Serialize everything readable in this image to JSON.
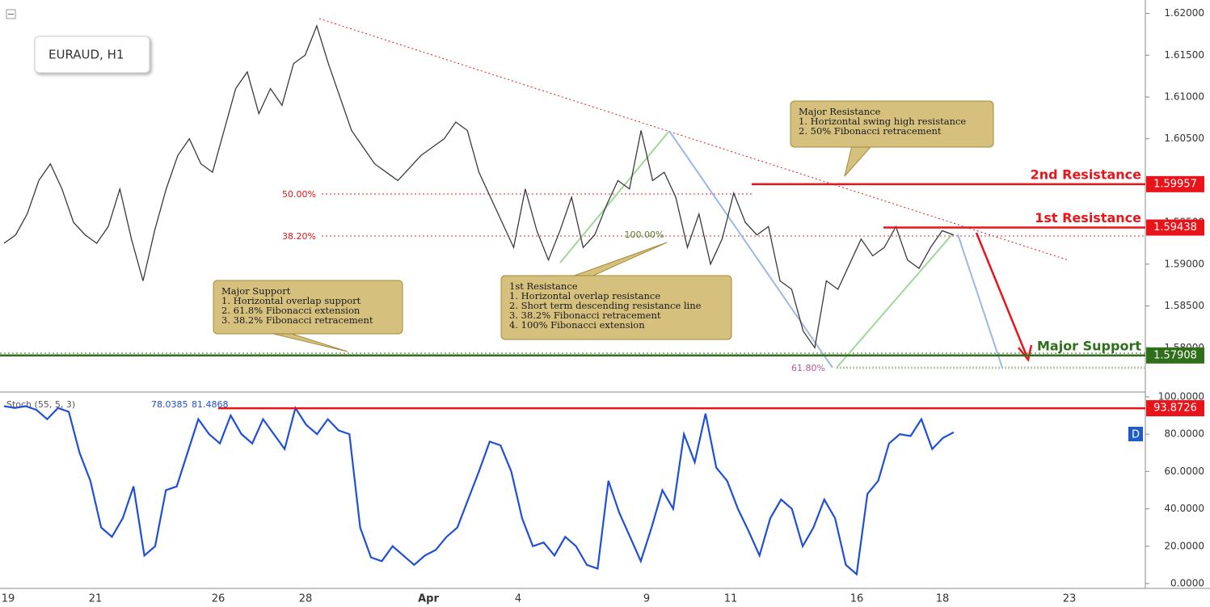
{
  "header": {
    "symbol": "EURAUD, H1"
  },
  "x_labels": [
    "19",
    "21",
    "26",
    "28",
    "Apr",
    "4",
    "9",
    "11",
    "16",
    "18",
    "23"
  ],
  "chart_data": [
    {
      "type": "line",
      "color": "#3a3a3a",
      "series": [
        {
          "name": "EURAUD",
          "color": "#3a3a3a",
          "values": [
            1.5925,
            1.5935,
            1.596,
            1.6,
            1.602,
            1.599,
            1.595,
            1.5935,
            1.5925,
            1.5945,
            1.599,
            1.593,
            1.588,
            1.594,
            1.599,
            1.603,
            1.605,
            1.602,
            1.601,
            1.606,
            1.611,
            1.613,
            1.608,
            1.611,
            1.609,
            1.614,
            1.615,
            1.6185,
            1.614,
            1.61,
            1.606,
            1.604,
            1.602,
            1.601,
            1.6,
            1.6015,
            1.603,
            1.604,
            1.605,
            1.607,
            1.606,
            1.601,
            1.598,
            1.595,
            1.592,
            1.599,
            1.594,
            1.5905,
            1.594,
            1.598,
            1.592,
            1.5935,
            1.597,
            1.6,
            1.599,
            1.606,
            1.6,
            1.601,
            1.598,
            1.592,
            1.596,
            1.59,
            1.593,
            1.5985,
            1.595,
            1.5935,
            1.5945,
            1.588,
            1.587,
            1.582,
            1.58,
            1.588,
            1.587,
            1.59,
            1.593,
            1.591,
            1.592,
            1.5945,
            1.5905,
            1.5895,
            1.592,
            1.594,
            1.5935
          ]
        }
      ],
      "ylim": [
        1.5749,
        1.6216
      ],
      "yticks": [
        {
          "value": 1.62,
          "label": "1.62000"
        },
        {
          "value": 1.615,
          "label": "1.61500"
        },
        {
          "value": 1.61,
          "label": "1.61000"
        },
        {
          "value": 1.605,
          "label": "1.60500"
        },
        {
          "value": 1.6,
          "label": "1.60000"
        },
        {
          "value": 1.595,
          "label": "1.59500"
        },
        {
          "value": 1.59,
          "label": "1.59000"
        },
        {
          "value": 1.585,
          "label": "1.58500"
        },
        {
          "value": 1.58,
          "label": "1.58000"
        }
      ],
      "levels": [
        {
          "label": "2nd Resistance",
          "value": 1.59957,
          "color": "#e8141a"
        },
        {
          "label": "1st Resistance",
          "value": 1.59438,
          "color": "#e8141a"
        },
        {
          "label": "Major Support",
          "value": 1.57908,
          "color": "#2f6e1a"
        }
      ],
      "fib_labels": [
        "50.00%",
        "38.20%",
        "100.00%",
        "61.80%"
      ],
      "annotations": [
        [
          "Major Resistance",
          "1. Horizontal swing high resistance",
          "2. 50% Fibonacci retracement"
        ],
        [
          "Major Support",
          "1. Horizontal overlap support",
          "2. 61.8% Fibonacci extension",
          "3. 38.2% Fibonacci retracement"
        ],
        [
          "1st Resistance",
          "1. Horizontal overlap resistance",
          "2. Short term descending resistance line",
          "3. 38.2% Fibonacci retracement",
          "4. 100% Fibonacci extension"
        ]
      ]
    },
    {
      "type": "line",
      "title": "Stoch (55, 5, 3)",
      "readouts": [
        78.0385,
        81.4868
      ],
      "badge": "D",
      "series": [
        {
          "name": "Stoch",
          "color": "#1f4fd6",
          "values": [
            95,
            94,
            95,
            93,
            88,
            94,
            92,
            70,
            55,
            30,
            25,
            35,
            52,
            15,
            20,
            50,
            52,
            70,
            88,
            80,
            75,
            90,
            80,
            75,
            88,
            80,
            72,
            94,
            85,
            80,
            88,
            82,
            80,
            30,
            14,
            12,
            20,
            15,
            10,
            15,
            18,
            25,
            30,
            45,
            60,
            76,
            74,
            60,
            35,
            20,
            22,
            15,
            25,
            20,
            10,
            8,
            55,
            38,
            25,
            12,
            30,
            50,
            40,
            80,
            65,
            91,
            62,
            55,
            40,
            28,
            15,
            35,
            45,
            40,
            20,
            30,
            45,
            35,
            10,
            5,
            48,
            55,
            75,
            80,
            79,
            88,
            72,
            78,
            81
          ]
        }
      ],
      "ylim": [
        -2.6,
        101.7
      ],
      "yticks": [
        {
          "value": 0,
          "label": "0.0000"
        },
        {
          "value": 20,
          "label": "20.0000"
        },
        {
          "value": 40,
          "label": "40.0000"
        },
        {
          "value": 60,
          "label": "60.0000"
        },
        {
          "value": 80,
          "label": "80.0000"
        },
        {
          "value": 100,
          "label": "100.0000"
        }
      ],
      "levels": [
        {
          "value": 93.8726,
          "color": "#e8141a"
        }
      ]
    }
  ]
}
